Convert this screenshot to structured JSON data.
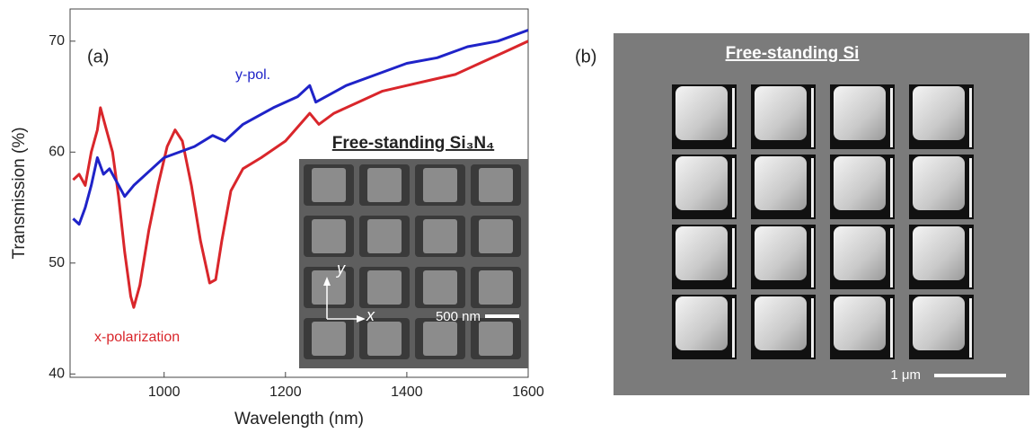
{
  "chart_data": {
    "type": "line",
    "panel_label": "(a)",
    "xlabel": "Wavelength (nm)",
    "ylabel": "Transmission (%)",
    "xlim": [
      845,
      1600
    ],
    "ylim": [
      39.7,
      72.9
    ],
    "xticks": [
      1000,
      1200,
      1400,
      1600
    ],
    "yticks": [
      40,
      50,
      60,
      70
    ],
    "series": [
      {
        "name": "x-polarization",
        "color": "#d9262b",
        "x": [
          850,
          860,
          870,
          880,
          890,
          895,
          905,
          915,
          925,
          935,
          945,
          950,
          960,
          975,
          990,
          1005,
          1018,
          1030,
          1045,
          1060,
          1075,
          1085,
          1095,
          1110,
          1130,
          1160,
          1200,
          1240,
          1255,
          1280,
          1320,
          1360,
          1400,
          1440,
          1480,
          1520,
          1560,
          1600
        ],
        "values": [
          57.5,
          58,
          57,
          60,
          62,
          64,
          62,
          60,
          56,
          51,
          47,
          46,
          48,
          53,
          57,
          60.5,
          62,
          61,
          57,
          52,
          48.2,
          48.5,
          52,
          56.5,
          58.5,
          59.5,
          61,
          63.5,
          62.5,
          63.5,
          64.5,
          65.5,
          66,
          66.5,
          67,
          68,
          69,
          70
        ]
      },
      {
        "name": "y-pol.",
        "color": "#1f23c8",
        "x": [
          850,
          860,
          870,
          880,
          890,
          900,
          910,
          920,
          935,
          950,
          980,
          1000,
          1050,
          1080,
          1100,
          1130,
          1180,
          1220,
          1240,
          1250,
          1300,
          1350,
          1400,
          1450,
          1500,
          1550,
          1600
        ],
        "values": [
          54,
          53.5,
          55,
          57,
          59.5,
          58,
          58.5,
          57.5,
          56,
          57,
          58.5,
          59.5,
          60.5,
          61.5,
          61,
          62.5,
          64,
          65,
          66,
          64.5,
          66,
          67,
          68,
          68.5,
          69.5,
          70,
          71
        ]
      }
    ],
    "inset": {
      "title": "Free-standing Si₃N₄",
      "scale_bar": "500 nm",
      "x_arrow": "x",
      "y_arrow": "y"
    }
  },
  "panel_b": {
    "label": "(b)",
    "title": "Free-standing Si",
    "scale_bar": "1 μm"
  }
}
